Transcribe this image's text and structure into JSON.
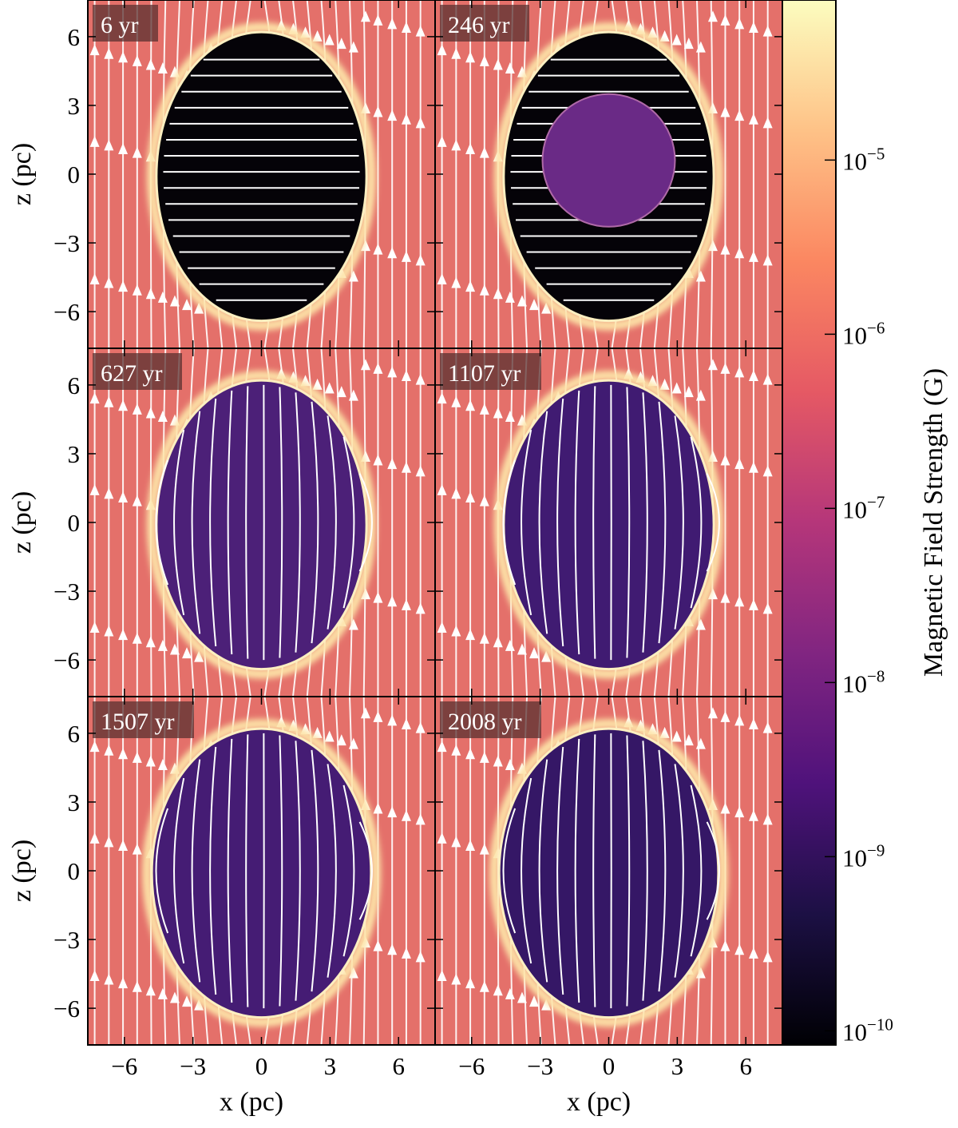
{
  "chart_data": {
    "type": "heatmap",
    "xlabel": "x  (pc)",
    "ylabel": "z  (pc)",
    "xlim": [
      -7.6,
      7.6
    ],
    "ylim": [
      -7.6,
      7.6
    ],
    "xticks": [
      {
        "value": -6,
        "label": "−6"
      },
      {
        "value": -3,
        "label": "−3"
      },
      0,
      3,
      6
    ],
    "yticks": [
      {
        "value": -6,
        "label": "−6"
      },
      {
        "value": -3,
        "label": "−3"
      },
      0,
      3,
      6
    ],
    "background_color": "#e4706a",
    "panels": [
      {
        "label": "6 yr",
        "interior_color": "#050308"
      },
      {
        "label": "246 yr",
        "interior_color": "#050308",
        "core_color": "#6a2a86"
      },
      {
        "label": "627 yr",
        "interior_color": "#4c2078"
      },
      {
        "label": "1107 yr",
        "interior_color": "#401b72"
      },
      {
        "label": "1507 yr",
        "interior_color": "#451c74"
      },
      {
        "label": "2008 yr",
        "interior_color": "#351766"
      }
    ],
    "colorbar": {
      "label": "Magnetic Field Strength  (G)",
      "log": true,
      "lim": [
        8.3e-11,
        8.3e-05
      ],
      "ticks": [
        {
          "value": 1e-10,
          "label": "10−10"
        },
        {
          "value": 1e-09,
          "label": "10−9"
        },
        {
          "value": 1e-08,
          "label": "10−8"
        },
        {
          "value": 1e-07,
          "label": "10−7"
        },
        {
          "value": 1e-06,
          "label": "10−6"
        },
        {
          "value": 1e-05,
          "label": "10−5"
        }
      ],
      "colors": [
        "#000004",
        "#1c1044",
        "#4f127b",
        "#812581",
        "#b5367a",
        "#e55964",
        "#fb8761",
        "#fec287",
        "#fcfdbf"
      ]
    }
  }
}
